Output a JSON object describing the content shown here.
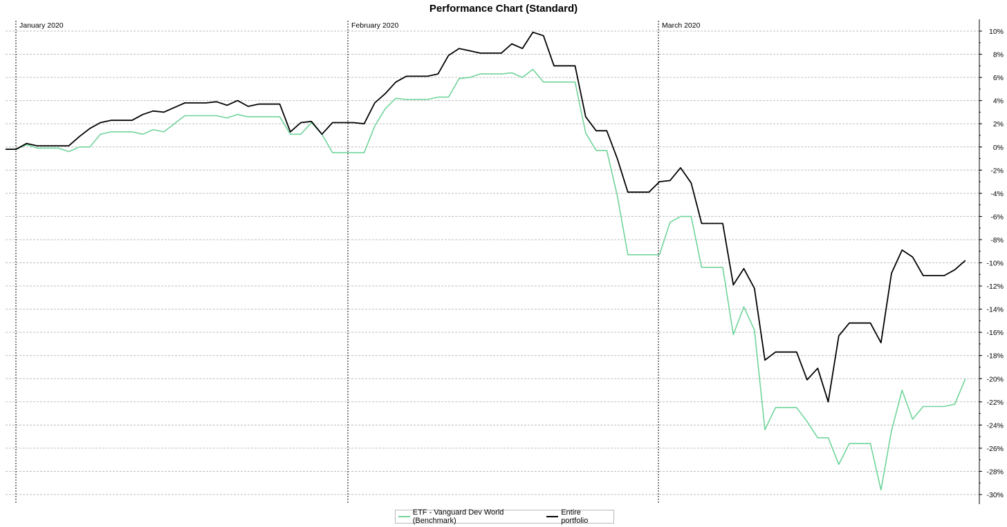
{
  "chart_data": {
    "type": "line",
    "title": "Performance Chart (Standard)",
    "xlabel": "",
    "ylabel": "",
    "ylim": [
      -30,
      10
    ],
    "y_ticks": [
      "10%",
      "8%",
      "6%",
      "4%",
      "2%",
      "0%",
      "-2%",
      "-4%",
      "-6%",
      "-8%",
      "-10%",
      "-12%",
      "-14%",
      "-16%",
      "-18%",
      "-20%",
      "-22%",
      "-24%",
      "-26%",
      "-28%",
      "-30%"
    ],
    "month_labels": [
      "January 2020",
      "February 2020",
      "March 2020"
    ],
    "grid": true,
    "legend_position": "bottom",
    "x_dates": [
      "2019-12-31",
      "2020-01-01",
      "2020-01-02",
      "2020-01-03",
      "2020-01-06",
      "2020-01-07",
      "2020-01-08",
      "2020-01-09",
      "2020-01-10",
      "2020-01-13",
      "2020-01-14",
      "2020-01-15",
      "2020-01-16",
      "2020-01-17",
      "2020-01-20",
      "2020-01-21",
      "2020-01-22",
      "2020-01-23",
      "2020-01-24",
      "2020-01-27",
      "2020-01-28",
      "2020-01-29",
      "2020-01-30",
      "2020-01-31",
      "2020-02-03",
      "2020-02-04",
      "2020-02-05",
      "2020-02-06",
      "2020-02-07",
      "2020-02-10",
      "2020-02-11",
      "2020-02-12",
      "2020-02-13",
      "2020-02-14",
      "2020-02-17",
      "2020-02-18",
      "2020-02-19",
      "2020-02-20",
      "2020-02-21",
      "2020-02-24",
      "2020-02-25",
      "2020-02-26",
      "2020-02-27",
      "2020-02-28",
      "2020-03-02",
      "2020-03-03",
      "2020-03-04",
      "2020-03-05",
      "2020-03-06",
      "2020-03-09",
      "2020-03-10",
      "2020-03-11",
      "2020-03-12",
      "2020-03-13",
      "2020-03-16",
      "2020-03-17",
      "2020-03-18",
      "2020-03-19",
      "2020-03-20",
      "2020-03-23",
      "2020-03-24",
      "2020-03-25",
      "2020-03-26",
      "2020-03-27",
      "2020-03-30",
      "2020-03-31"
    ],
    "series": [
      {
        "name": "ETF - Vanguard Dev World (Benchmark)",
        "color": "#6fd49a",
        "points": [
          [
            "2019-12-30",
            -0.2
          ],
          [
            "2019-12-31",
            -0.2
          ],
          [
            "2020-01-01",
            0.2
          ],
          [
            "2020-01-02",
            -0.1
          ],
          [
            "2020-01-03",
            -0.1
          ],
          [
            "2020-01-06",
            -0.1
          ],
          [
            "2020-01-07",
            -0.4
          ],
          [
            "2020-01-08",
            0.0
          ],
          [
            "2020-01-09",
            0.0
          ],
          [
            "2020-01-10",
            1.1
          ],
          [
            "2020-01-13",
            1.3
          ],
          [
            "2020-01-14",
            1.3
          ],
          [
            "2020-01-15",
            1.3
          ],
          [
            "2020-01-16",
            1.1
          ],
          [
            "2020-01-17",
            1.5
          ],
          [
            "2020-01-20",
            1.3
          ],
          [
            "2020-01-21",
            2.0
          ],
          [
            "2020-01-22",
            2.7
          ],
          [
            "2020-01-23",
            2.7
          ],
          [
            "2020-01-24",
            2.7
          ],
          [
            "2020-01-27",
            2.7
          ],
          [
            "2020-01-28",
            2.5
          ],
          [
            "2020-01-29",
            2.8
          ],
          [
            "2020-01-30",
            2.6
          ],
          [
            "2020-01-31",
            2.6
          ],
          [
            "2020-02-03",
            2.6
          ],
          [
            "2020-02-04",
            2.6
          ],
          [
            "2020-02-05",
            1.1
          ],
          [
            "2020-02-06",
            1.1
          ],
          [
            "2020-02-07",
            2.1
          ],
          [
            "2020-02-10",
            1.1
          ],
          [
            "2020-02-11",
            -0.5
          ],
          [
            "2020-02-12",
            -0.5
          ],
          [
            "2020-02-13",
            -0.5
          ],
          [
            "2020-02-14",
            -0.5
          ],
          [
            "2020-02-17",
            1.8
          ],
          [
            "2020-02-18",
            3.3
          ],
          [
            "2020-02-19",
            4.2
          ],
          [
            "2020-02-20",
            4.1
          ],
          [
            "2020-02-21",
            4.1
          ],
          [
            "2020-02-24",
            4.1
          ],
          [
            "2020-02-25",
            4.3
          ],
          [
            "2020-02-26",
            4.3
          ],
          [
            "2020-02-27",
            5.9
          ],
          [
            "2020-02-28",
            6.0
          ],
          [
            "2020-03-02",
            6.3
          ],
          [
            "2020-03-03",
            6.3
          ],
          [
            "2020-03-04",
            6.3
          ],
          [
            "2020-03-05",
            6.4
          ],
          [
            "2020-03-06",
            6.0
          ],
          [
            "2020-03-09",
            6.7
          ],
          [
            "2020-03-10",
            5.6
          ],
          [
            "2020-03-11",
            5.6
          ],
          [
            "2020-03-12",
            5.6
          ],
          [
            "2020-03-13",
            5.6
          ],
          [
            "2020-03-16",
            1.2
          ],
          [
            "2020-03-17",
            -0.3
          ],
          [
            "2020-03-18",
            -0.3
          ],
          [
            "2020-03-19",
            -4.2
          ],
          [
            "2020-03-20",
            -9.3
          ],
          [
            "2020-03-23",
            -9.3
          ],
          [
            "2020-03-24",
            -9.3
          ],
          [
            "2020-03-25",
            -9.3
          ],
          [
            "2020-03-26",
            -6.5
          ],
          [
            "2020-03-27",
            -6.0
          ],
          [
            "2020-03-30",
            -6.0
          ],
          [
            "2020-03-31",
            -10.4
          ],
          [
            "2020-04-01",
            -10.4
          ],
          [
            "2020-04-02",
            -10.4
          ],
          [
            "2020-04-03",
            -16.2
          ],
          [
            "2020-04-06",
            -13.8
          ],
          [
            "2020-04-07",
            -15.8
          ],
          [
            "2020-04-08",
            -24.4
          ],
          [
            "2020-04-09",
            -22.5
          ],
          [
            "2020-04-10",
            -22.5
          ],
          [
            "2020-04-13",
            -22.5
          ],
          [
            "2020-04-14",
            -23.7
          ],
          [
            "2020-04-15",
            -25.1
          ],
          [
            "2020-04-16",
            -25.1
          ],
          [
            "2020-04-17",
            -27.4
          ],
          [
            "2020-04-20",
            -25.6
          ],
          [
            "2020-04-21",
            -25.6
          ],
          [
            "2020-04-22",
            -25.6
          ],
          [
            "2020-04-23",
            -29.6
          ],
          [
            "2020-04-24",
            -24.5
          ],
          [
            "2020-04-27",
            -21.0
          ],
          [
            "2020-04-28",
            -23.5
          ],
          [
            "2020-04-29",
            -22.4
          ],
          [
            "2020-04-30",
            -22.4
          ],
          [
            "2020-05-01",
            -22.4
          ],
          [
            "2020-05-04",
            -22.2
          ],
          [
            "2020-05-05",
            -20.0
          ]
        ]
      },
      {
        "name": "Entire portfolio",
        "color": "#000000",
        "points": [
          [
            "2019-12-30",
            -0.2
          ],
          [
            "2019-12-31",
            -0.2
          ],
          [
            "2020-01-01",
            0.3
          ],
          [
            "2020-01-02",
            0.1
          ],
          [
            "2020-01-03",
            0.1
          ],
          [
            "2020-01-06",
            0.1
          ],
          [
            "2020-01-07",
            0.1
          ],
          [
            "2020-01-08",
            0.9
          ],
          [
            "2020-01-09",
            1.6
          ],
          [
            "2020-01-10",
            2.1
          ],
          [
            "2020-01-13",
            2.3
          ],
          [
            "2020-01-14",
            2.3
          ],
          [
            "2020-01-15",
            2.3
          ],
          [
            "2020-01-16",
            2.8
          ],
          [
            "2020-01-17",
            3.1
          ],
          [
            "2020-01-20",
            3.0
          ],
          [
            "2020-01-21",
            3.4
          ],
          [
            "2020-01-22",
            3.8
          ],
          [
            "2020-01-23",
            3.8
          ],
          [
            "2020-01-24",
            3.8
          ],
          [
            "2020-01-27",
            3.9
          ],
          [
            "2020-01-28",
            3.6
          ],
          [
            "2020-01-29",
            4.0
          ],
          [
            "2020-01-30",
            3.5
          ],
          [
            "2020-01-31",
            3.7
          ],
          [
            "2020-02-03",
            3.7
          ],
          [
            "2020-02-04",
            3.7
          ],
          [
            "2020-02-05",
            1.3
          ],
          [
            "2020-02-06",
            2.1
          ],
          [
            "2020-02-07",
            2.2
          ],
          [
            "2020-02-10",
            1.1
          ],
          [
            "2020-02-11",
            2.1
          ],
          [
            "2020-02-12",
            2.1
          ],
          [
            "2020-02-13",
            2.1
          ],
          [
            "2020-02-14",
            2.0
          ],
          [
            "2020-02-17",
            3.8
          ],
          [
            "2020-02-18",
            4.6
          ],
          [
            "2020-02-19",
            5.6
          ],
          [
            "2020-02-20",
            6.1
          ],
          [
            "2020-02-21",
            6.1
          ],
          [
            "2020-02-24",
            6.1
          ],
          [
            "2020-02-25",
            6.3
          ],
          [
            "2020-02-26",
            7.9
          ],
          [
            "2020-02-27",
            8.5
          ],
          [
            "2020-02-28",
            8.3
          ],
          [
            "2020-03-02",
            8.1
          ],
          [
            "2020-03-03",
            8.1
          ],
          [
            "2020-03-04",
            8.1
          ],
          [
            "2020-03-05",
            8.9
          ],
          [
            "2020-03-06",
            8.5
          ],
          [
            "2020-03-09",
            9.9
          ],
          [
            "2020-03-10",
            9.6
          ],
          [
            "2020-03-11",
            7.0
          ],
          [
            "2020-03-12",
            7.0
          ],
          [
            "2020-03-13",
            7.0
          ],
          [
            "2020-03-16",
            2.6
          ],
          [
            "2020-03-17",
            1.4
          ],
          [
            "2020-03-18",
            1.4
          ],
          [
            "2020-03-19",
            -1.0
          ],
          [
            "2020-03-20",
            -3.9
          ],
          [
            "2020-03-23",
            -3.9
          ],
          [
            "2020-03-24",
            -3.9
          ],
          [
            "2020-03-25",
            -3.0
          ],
          [
            "2020-03-26",
            -2.9
          ],
          [
            "2020-03-27",
            -1.8
          ],
          [
            "2020-03-30",
            -3.1
          ],
          [
            "2020-03-31",
            -6.6
          ],
          [
            "2020-04-01",
            -6.6
          ],
          [
            "2020-04-02",
            -6.6
          ],
          [
            "2020-04-03",
            -11.9
          ],
          [
            "2020-04-06",
            -10.5
          ],
          [
            "2020-04-07",
            -12.2
          ],
          [
            "2020-04-08",
            -18.4
          ],
          [
            "2020-04-09",
            -17.7
          ],
          [
            "2020-04-10",
            -17.7
          ],
          [
            "2020-04-13",
            -17.7
          ],
          [
            "2020-04-14",
            -20.1
          ],
          [
            "2020-04-15",
            -19.1
          ],
          [
            "2020-04-16",
            -22.0
          ],
          [
            "2020-04-17",
            -16.3
          ],
          [
            "2020-04-20",
            -15.2
          ],
          [
            "2020-04-21",
            -15.2
          ],
          [
            "2020-04-22",
            -15.2
          ],
          [
            "2020-04-23",
            -16.9
          ],
          [
            "2020-04-24",
            -10.9
          ],
          [
            "2020-04-27",
            -8.9
          ],
          [
            "2020-04-28",
            -9.5
          ],
          [
            "2020-04-29",
            -11.1
          ],
          [
            "2020-04-30",
            -11.1
          ],
          [
            "2020-05-01",
            -11.1
          ],
          [
            "2020-05-04",
            -10.6
          ],
          [
            "2020-05-05",
            -9.8
          ]
        ]
      }
    ]
  }
}
